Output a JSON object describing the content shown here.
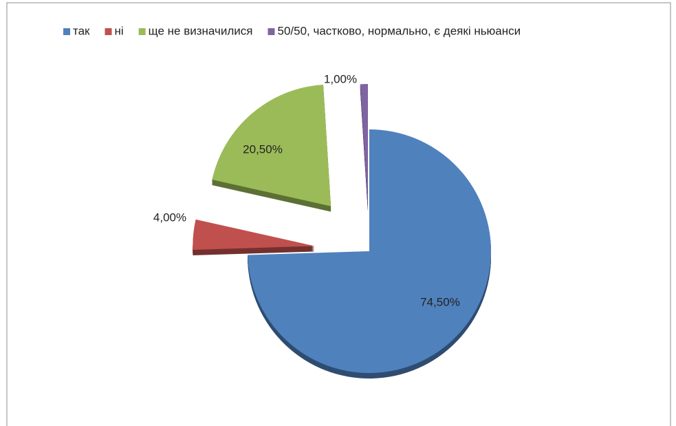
{
  "chart_data": {
    "type": "pie",
    "categories": [
      "так",
      "ні",
      "ще не визначилися",
      "50/50, частково, нормально, є деякі ньюанси"
    ],
    "values": [
      74.5,
      4,
      20.5,
      1
    ],
    "value_labels": [
      "74,50%",
      "4,00%",
      "20,50%",
      "1,00%"
    ],
    "colors": [
      "#4f81bd",
      "#c0504d",
      "#9bbb59",
      "#8064a2"
    ],
    "legend": "top"
  }
}
